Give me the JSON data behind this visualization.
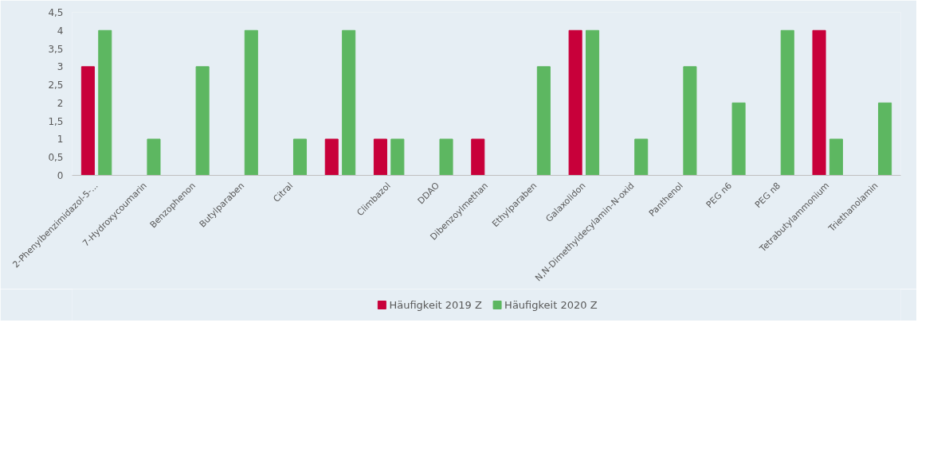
{
  "chart_data": {
    "type": "bar",
    "categories": [
      "2-Phenylbenzimidazol-5-...",
      "7-Hydroxycoumarin",
      "Benzophenon",
      "Butylparaben",
      "Citral",
      null,
      "Climbazol",
      "DDAO",
      "Dibenzoylmethan",
      "Ethylparaben",
      "Galaxolidon",
      "N,N-Dimethyldecylamin-N-oxid",
      "Panthenol",
      "PEG n6",
      "PEG n8",
      "Tetrabutylammonium",
      "Triethanolamin"
    ],
    "series": [
      {
        "name": "Häufigkeit 2019 Z",
        "color": "#c8003a",
        "values": [
          3,
          0,
          0,
          0,
          0,
          1,
          1,
          0,
          1,
          0,
          4,
          0,
          0,
          0,
          0,
          4,
          0
        ]
      },
      {
        "name": "Häufigkeit 2020 Z",
        "color": "#5db761",
        "values": [
          4,
          1,
          3,
          4,
          1,
          4,
          1,
          1,
          0,
          3,
          4,
          1,
          3,
          2,
          4,
          1,
          2
        ]
      }
    ],
    "ylim": [
      0,
      4.5
    ],
    "yticks": [
      {
        "value": 0,
        "label": "0"
      },
      {
        "value": 0.5,
        "label": "0,5"
      },
      {
        "value": 1,
        "label": "1"
      },
      {
        "value": 1.5,
        "label": "1,5"
      },
      {
        "value": 2,
        "label": "2"
      },
      {
        "value": 2.5,
        "label": "2,5"
      },
      {
        "value": 3,
        "label": "3"
      },
      {
        "value": 3.5,
        "label": "3,5"
      },
      {
        "value": 4,
        "label": "4"
      },
      {
        "value": 4.5,
        "label": "4,5"
      }
    ],
    "grid": false,
    "legend": "bottom"
  }
}
